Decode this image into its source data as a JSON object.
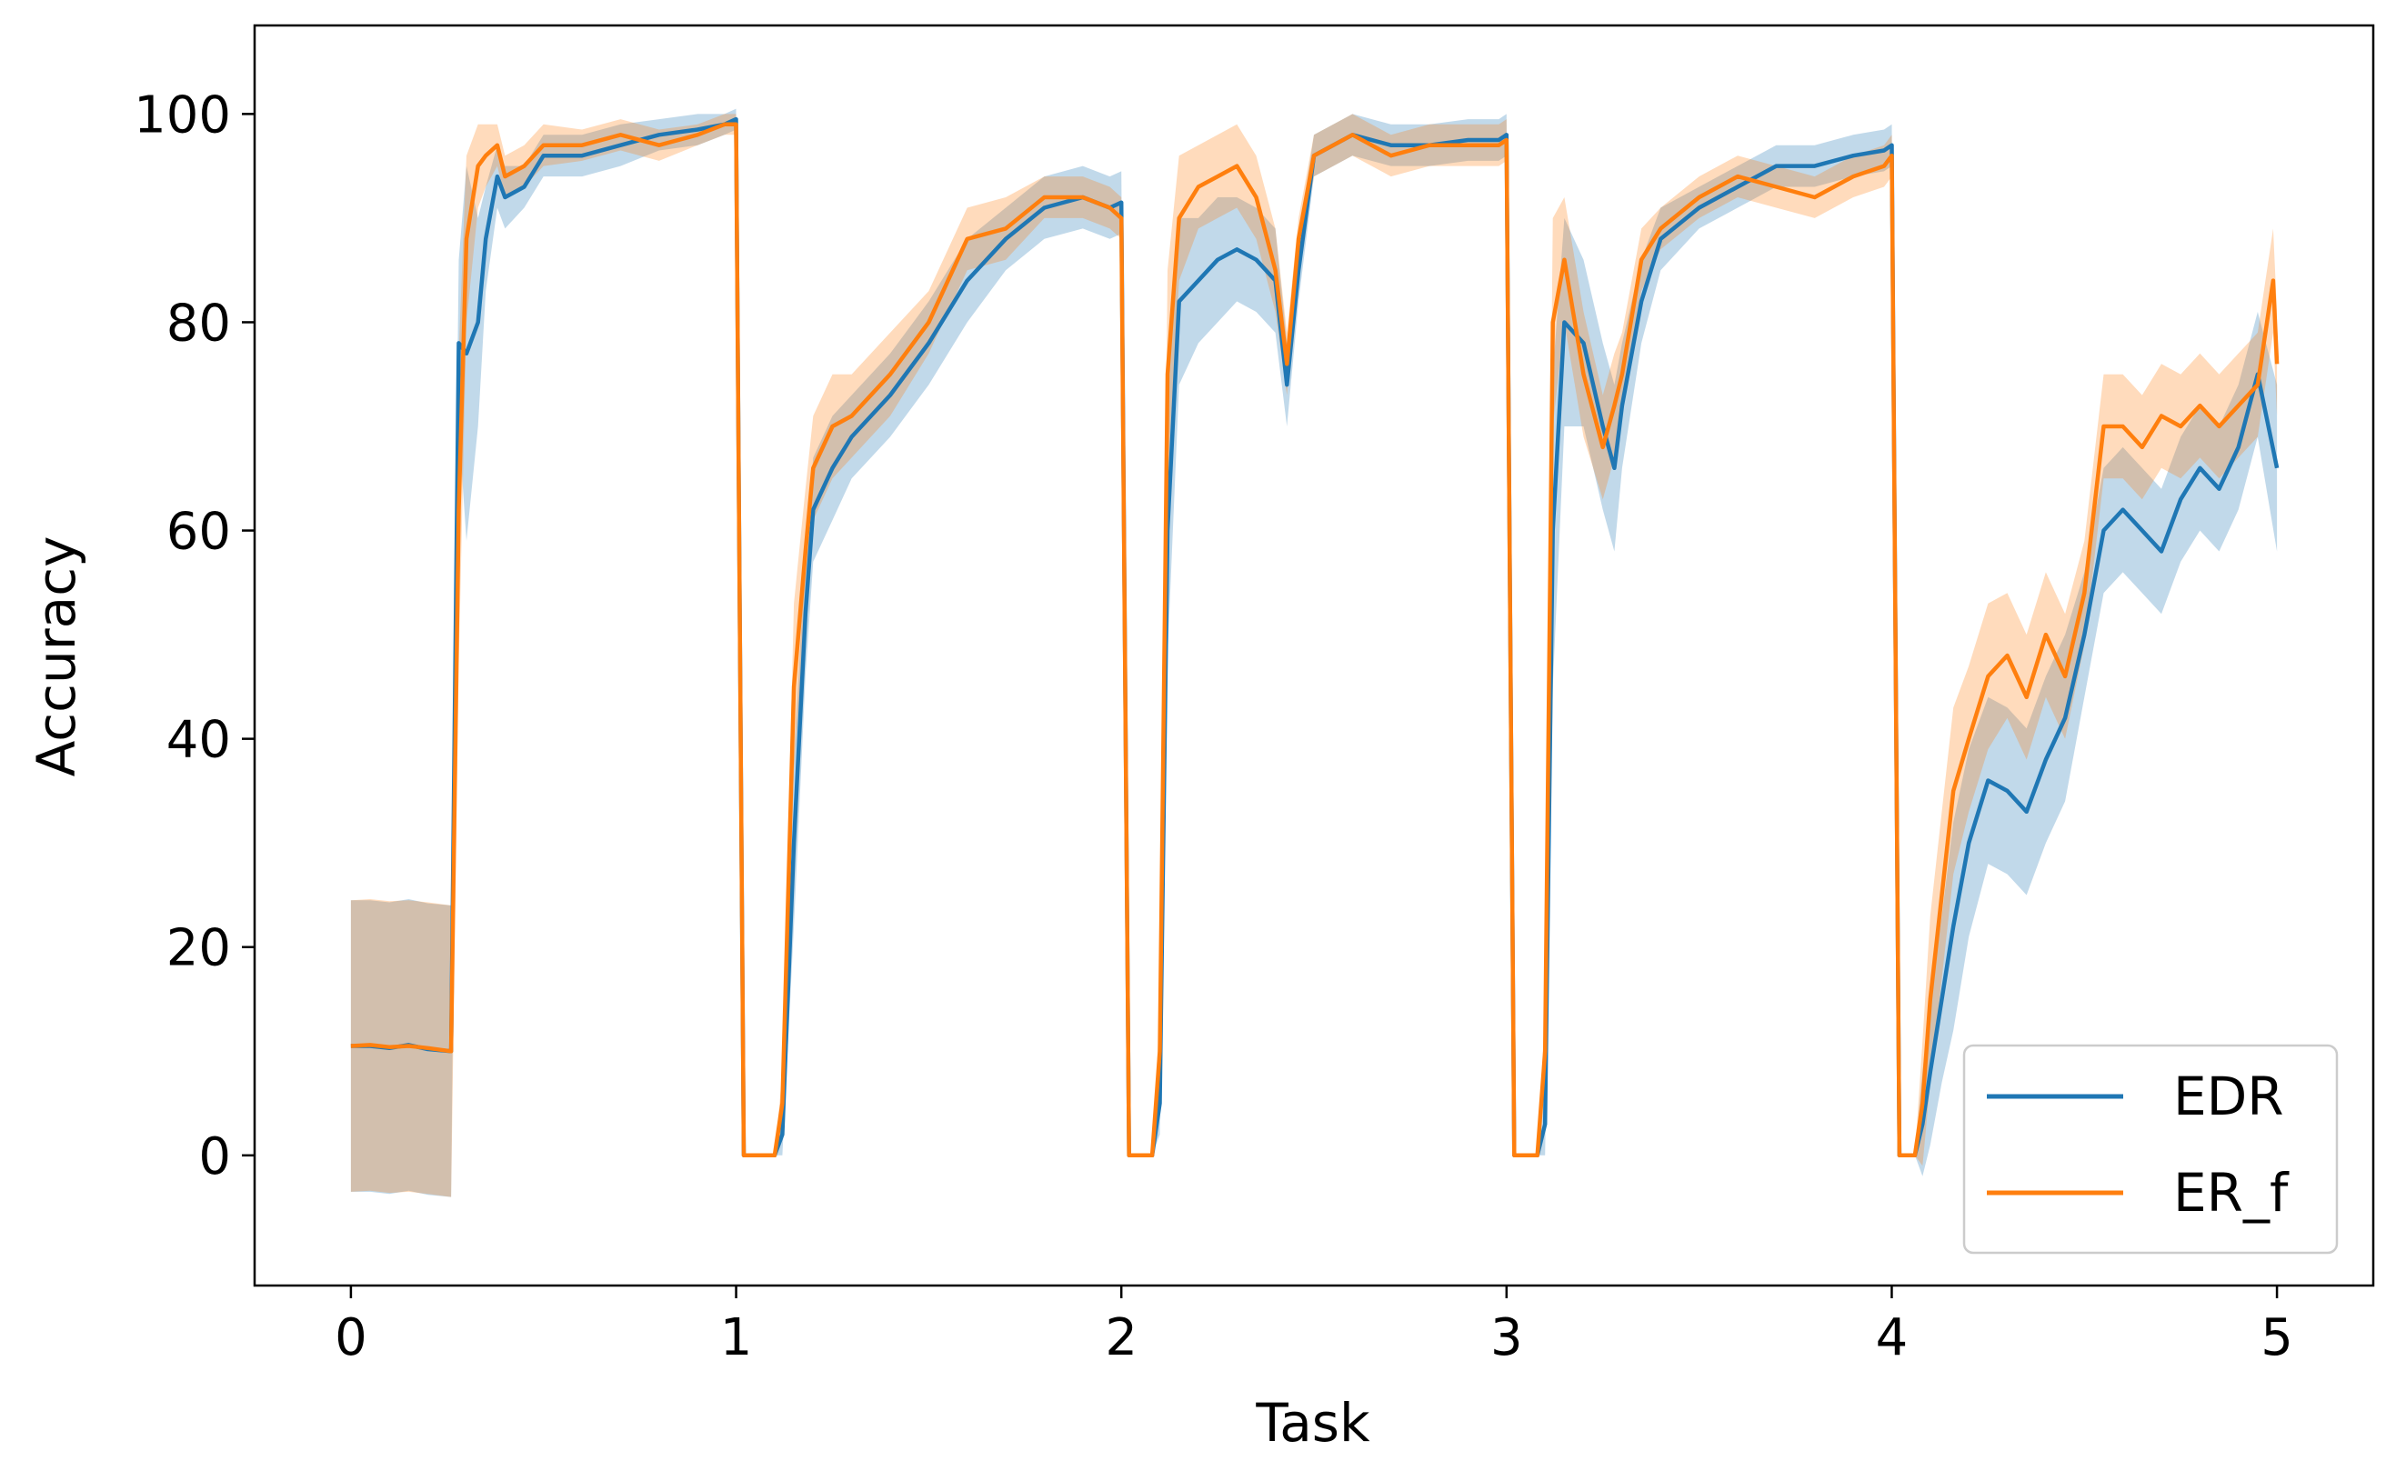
{
  "chart_data": {
    "type": "line",
    "title": "",
    "xlabel": "Task",
    "ylabel": "Accuracy",
    "xlim": [
      -0.25,
      5.25
    ],
    "ylim": [
      -12.5,
      108.5
    ],
    "xticks": [
      "0",
      "1",
      "2",
      "3",
      "4",
      "5"
    ],
    "yticks": [
      "0",
      "20",
      "40",
      "60",
      "80",
      "100"
    ],
    "grid": false,
    "legend_position": "bottom-right",
    "series": [
      {
        "name": "EDR",
        "color": "#1f77b4",
        "band_color": "#1f77b4",
        "x": [
          0,
          0.05,
          0.1,
          0.15,
          0.2,
          0.26,
          0.28,
          0.3,
          0.33,
          0.35,
          0.38,
          0.4,
          0.45,
          0.5,
          0.6,
          0.7,
          0.8,
          0.9,
          0.97,
          1.0,
          1.02,
          1.1,
          1.12,
          1.15,
          1.18,
          1.2,
          1.25,
          1.3,
          1.4,
          1.5,
          1.6,
          1.7,
          1.8,
          1.9,
          1.97,
          2.0,
          2.02,
          2.08,
          2.1,
          2.12,
          2.15,
          2.2,
          2.25,
          2.3,
          2.35,
          2.4,
          2.43,
          2.46,
          2.5,
          2.6,
          2.7,
          2.8,
          2.9,
          2.98,
          3.0,
          3.02,
          3.08,
          3.1,
          3.12,
          3.15,
          3.2,
          3.25,
          3.28,
          3.3,
          3.35,
          3.4,
          3.5,
          3.6,
          3.7,
          3.8,
          3.9,
          3.98,
          4.0,
          4.02,
          4.06,
          4.08,
          4.1,
          4.13,
          4.16,
          4.2,
          4.25,
          4.3,
          4.35,
          4.4,
          4.45,
          4.5,
          4.55,
          4.6,
          4.65,
          4.7,
          4.75,
          4.8,
          4.85,
          4.9,
          4.95,
          5.0
        ],
        "y": [
          10.5,
          10.5,
          10.3,
          10.6,
          10.2,
          10.0,
          78,
          77,
          80,
          88,
          94,
          92,
          93,
          96,
          96,
          97,
          98,
          98.5,
          99,
          99.5,
          0,
          0,
          2,
          30,
          52,
          62,
          66,
          69,
          73,
          78,
          84,
          88,
          91,
          92,
          91,
          91.5,
          0,
          0,
          5,
          60,
          82,
          84,
          86,
          87,
          86,
          84,
          74,
          85,
          96,
          98,
          97,
          97,
          97.5,
          97.5,
          98,
          0,
          0,
          3,
          60,
          80,
          78,
          70,
          66,
          72,
          82,
          88,
          91,
          93,
          95,
          95,
          96,
          96.5,
          97,
          0,
          0,
          3,
          8,
          15,
          22,
          30,
          36,
          35,
          33,
          38,
          42,
          50,
          60,
          62,
          60,
          58,
          63,
          66,
          64,
          68,
          75,
          66
        ],
        "band": [
          14,
          14,
          14,
          14,
          14,
          14,
          8,
          18,
          10,
          5,
          3,
          3,
          2,
          2,
          2,
          2,
          1.5,
          1.5,
          1,
          1,
          0,
          0,
          2,
          8,
          6,
          5,
          5,
          4,
          4,
          4,
          4,
          3,
          3,
          3,
          3,
          3,
          0,
          0,
          3,
          12,
          8,
          6,
          6,
          5,
          5,
          5,
          4,
          3,
          2,
          2,
          2,
          2,
          2,
          2,
          2,
          0,
          0,
          3,
          15,
          10,
          8,
          8,
          8,
          6,
          4,
          3,
          2,
          2,
          2,
          2,
          2,
          2,
          2,
          0,
          0,
          5,
          7,
          8,
          10,
          9,
          8,
          8,
          8,
          8,
          8,
          6,
          6,
          6,
          6,
          6,
          6,
          6,
          6,
          6,
          6,
          8
        ]
      },
      {
        "name": "ER_f",
        "color": "#ff7f0e",
        "band_color": "#ff7f0e",
        "x": [
          0,
          0.05,
          0.1,
          0.15,
          0.2,
          0.26,
          0.28,
          0.3,
          0.33,
          0.35,
          0.38,
          0.4,
          0.45,
          0.5,
          0.6,
          0.7,
          0.8,
          0.9,
          0.97,
          1.0,
          1.02,
          1.1,
          1.12,
          1.15,
          1.18,
          1.2,
          1.25,
          1.3,
          1.4,
          1.5,
          1.6,
          1.7,
          1.8,
          1.9,
          1.97,
          2.0,
          2.02,
          2.08,
          2.1,
          2.12,
          2.15,
          2.2,
          2.25,
          2.3,
          2.35,
          2.4,
          2.43,
          2.46,
          2.5,
          2.6,
          2.7,
          2.8,
          2.9,
          2.98,
          3.0,
          3.02,
          3.08,
          3.1,
          3.12,
          3.15,
          3.2,
          3.25,
          3.28,
          3.3,
          3.35,
          3.4,
          3.5,
          3.6,
          3.7,
          3.8,
          3.9,
          3.98,
          4.0,
          4.02,
          4.06,
          4.08,
          4.1,
          4.13,
          4.16,
          4.2,
          4.25,
          4.3,
          4.35,
          4.4,
          4.45,
          4.5,
          4.55,
          4.6,
          4.65,
          4.7,
          4.75,
          4.8,
          4.85,
          4.9,
          4.95,
          4.99,
          5.0
        ],
        "y": [
          10.5,
          10.6,
          10.4,
          10.5,
          10.3,
          10.0,
          62,
          88,
          95,
          96,
          97,
          94,
          95,
          97,
          97,
          98,
          97,
          98,
          99,
          99,
          0,
          0,
          5,
          45,
          58,
          66,
          70,
          71,
          75,
          80,
          88,
          89,
          92,
          92,
          91,
          90,
          0,
          0,
          10,
          75,
          90,
          93,
          94,
          95,
          92,
          85,
          76,
          88,
          96,
          98,
          96,
          97,
          97,
          97,
          97.5,
          0,
          0,
          10,
          80,
          86,
          75,
          68,
          72,
          75,
          86,
          89,
          92,
          94,
          93,
          92,
          94,
          95,
          96,
          0,
          0,
          5,
          15,
          25,
          35,
          40,
          46,
          48,
          44,
          50,
          46,
          54,
          70,
          70,
          68,
          71,
          70,
          72,
          70,
          72,
          74,
          84,
          76
        ],
        "band": [
          14,
          14,
          14,
          14,
          14,
          14,
          15,
          8,
          4,
          3,
          2,
          2,
          2,
          2,
          1.5,
          1.5,
          1.5,
          1,
          1,
          1,
          0,
          0,
          3,
          8,
          6,
          5,
          5,
          4,
          4,
          3,
          3,
          3,
          2,
          2,
          2,
          2,
          0,
          0,
          4,
          10,
          6,
          4,
          4,
          4,
          4,
          4,
          3,
          2,
          2,
          2,
          2,
          2,
          2,
          2,
          2,
          0,
          0,
          4,
          10,
          6,
          6,
          5,
          5,
          4,
          3,
          2,
          2,
          2,
          2,
          2,
          2,
          2,
          2,
          0,
          0,
          6,
          8,
          8,
          8,
          7,
          7,
          6,
          6,
          6,
          6,
          5,
          5,
          5,
          5,
          5,
          5,
          5,
          5,
          5,
          5,
          5,
          5
        ]
      }
    ]
  }
}
